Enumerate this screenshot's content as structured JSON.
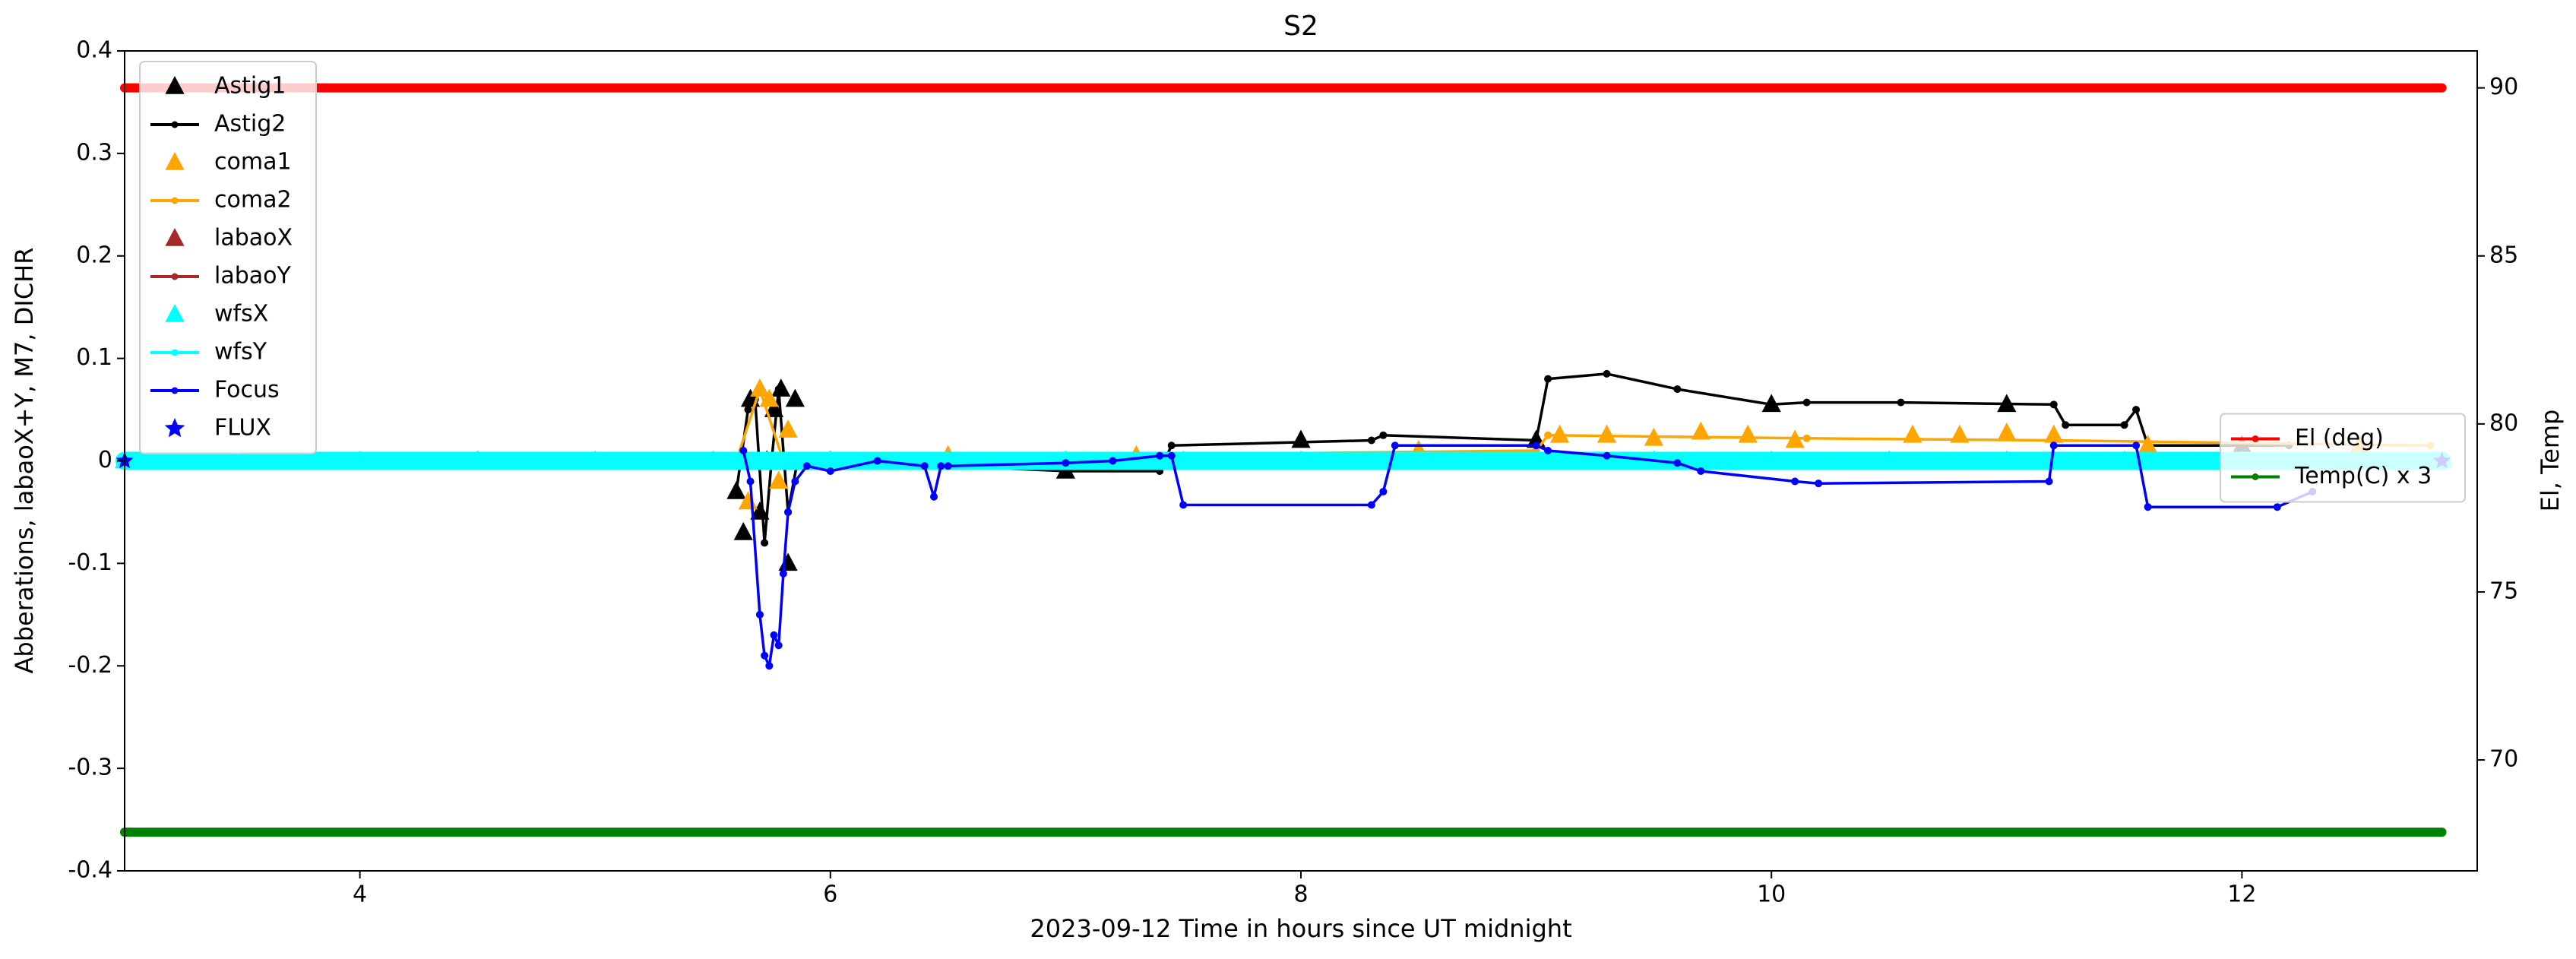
{
  "chart_data": {
    "type": "line",
    "title": "S2",
    "xlabel": "2023-09-12  Time in hours since UT midnight",
    "ylabel": "Abberations, labaoX+Y, M7, DICHR",
    "y2label": "El, Temp",
    "xlim": [
      3,
      13
    ],
    "xticks": [
      4,
      6,
      8,
      10,
      12
    ],
    "ylim": [
      -0.4,
      0.4
    ],
    "yticks": [
      -0.4,
      -0.3,
      -0.2,
      -0.1,
      0.0,
      0.1,
      0.2,
      0.3,
      0.4
    ],
    "y2lim": [
      66.7,
      91.1
    ],
    "y2ticks": [
      70,
      75,
      80,
      85,
      90
    ],
    "legend_loc": "upper left",
    "legend2_loc": "center right",
    "series": [
      {
        "name": "Astig1",
        "color": "#000000",
        "marker": "triangle",
        "line": false,
        "x": [
          5.6,
          5.63,
          5.66,
          5.7,
          5.73,
          5.76,
          5.79,
          5.82,
          5.85,
          6.0,
          7.0,
          8.0,
          9.0,
          10.0,
          11.0,
          12.0
        ],
        "values": [
          -0.03,
          -0.07,
          0.06,
          -0.05,
          0.0,
          0.05,
          0.07,
          -0.1,
          0.06,
          0.0,
          -0.01,
          0.02,
          0.02,
          0.055,
          0.055,
          0.015
        ]
      },
      {
        "name": "Astig2",
        "color": "#000000",
        "marker": "dot",
        "line": true,
        "x": [
          5.6,
          5.65,
          5.68,
          5.72,
          5.75,
          5.78,
          5.82,
          5.86,
          5.9,
          6.5,
          7.0,
          7.4,
          7.45,
          8.3,
          8.35,
          9.0,
          9.05,
          9.3,
          9.6,
          10.0,
          10.15,
          10.55,
          11.2,
          11.25,
          11.5,
          11.55,
          11.6,
          12.2
        ],
        "values": [
          -0.03,
          0.05,
          0.06,
          -0.08,
          0.0,
          0.07,
          -0.05,
          0.0,
          0.0,
          -0.005,
          -0.01,
          -0.01,
          0.015,
          0.02,
          0.025,
          0.02,
          0.08,
          0.085,
          0.07,
          0.055,
          0.057,
          0.057,
          0.055,
          0.035,
          0.035,
          0.05,
          0.015,
          0.015
        ]
      },
      {
        "name": "coma1",
        "color": "#ffa500",
        "marker": "triangle",
        "line": false,
        "x": [
          5.65,
          5.7,
          5.74,
          5.78,
          5.82,
          6.5,
          7.3,
          8.5,
          9.1,
          9.3,
          9.5,
          9.7,
          9.9,
          10.1,
          10.6,
          10.8,
          11.0,
          11.2,
          11.6,
          12.5
        ],
        "values": [
          -0.04,
          0.07,
          0.06,
          -0.02,
          0.03,
          0.005,
          0.005,
          0.01,
          0.025,
          0.025,
          0.022,
          0.028,
          0.025,
          0.02,
          0.025,
          0.025,
          0.027,
          0.025,
          0.015,
          0.015
        ]
      },
      {
        "name": "coma2",
        "color": "#ffa500",
        "marker": "dot",
        "line": true,
        "x": [
          5.6,
          5.7,
          5.8,
          5.9,
          7.0,
          9.0,
          9.05,
          10.15,
          11.2,
          12.8
        ],
        "values": [
          0.0,
          0.07,
          0.0,
          0.005,
          0.005,
          0.01,
          0.025,
          0.022,
          0.02,
          0.015
        ]
      },
      {
        "name": "labaoX",
        "color": "#a52a2a",
        "marker": "triangle",
        "line": false,
        "x": [
          3,
          12.85
        ],
        "values": [
          0,
          0
        ]
      },
      {
        "name": "labaoY",
        "color": "#a52a2a",
        "marker": "dot",
        "line": true,
        "x": [
          3,
          12.85
        ],
        "values": [
          0,
          0
        ]
      },
      {
        "name": "wfsX",
        "color": "#00ffff",
        "marker": "triangle",
        "line": false,
        "x": [
          3,
          3.5,
          4,
          4.5,
          5,
          5.5,
          6,
          6.5,
          7,
          7.5,
          8,
          8.5,
          9,
          9.5,
          10,
          10.5,
          11,
          11.5,
          12,
          12.5,
          12.85
        ],
        "values": [
          0,
          0,
          0,
          0,
          0,
          0,
          0,
          0,
          0,
          0,
          0,
          0,
          0,
          0,
          0,
          0,
          0,
          0,
          0,
          0,
          0
        ]
      },
      {
        "name": "wfsY",
        "color": "#00ffff",
        "marker": "dot",
        "line": true,
        "width": 24,
        "x": [
          3,
          12.85
        ],
        "values": [
          0,
          0
        ]
      },
      {
        "name": "Focus",
        "color": "#0000ff",
        "marker": "dot",
        "line": true,
        "x": [
          5.63,
          5.66,
          5.7,
          5.72,
          5.74,
          5.76,
          5.78,
          5.8,
          5.82,
          5.85,
          5.9,
          6.0,
          6.2,
          6.4,
          6.44,
          6.47,
          6.5,
          7.0,
          7.2,
          7.4,
          7.45,
          7.5,
          8.3,
          8.35,
          8.4,
          9.0,
          9.05,
          9.3,
          9.6,
          9.7,
          10.1,
          10.2,
          11.18,
          11.2,
          11.55,
          11.6,
          12.15,
          12.3
        ],
        "values": [
          0.01,
          -0.02,
          -0.15,
          -0.19,
          -0.2,
          -0.17,
          -0.18,
          -0.11,
          -0.05,
          -0.02,
          -0.005,
          -0.01,
          0.0,
          -0.005,
          -0.035,
          -0.005,
          -0.005,
          -0.002,
          0.0,
          0.005,
          0.005,
          -0.043,
          -0.043,
          -0.03,
          0.015,
          0.015,
          0.01,
          0.005,
          -0.002,
          -0.01,
          -0.02,
          -0.022,
          -0.02,
          0.015,
          0.015,
          -0.045,
          -0.045,
          -0.03
        ]
      },
      {
        "name": "FLUX",
        "color": "#0000ff",
        "marker": "star",
        "line": false,
        "x": [
          3,
          12.85
        ],
        "values": [
          0,
          0
        ]
      },
      {
        "name": "El (deg)",
        "color": "#ff0000",
        "marker": "dot",
        "line": true,
        "width": 12,
        "axis": "y2",
        "x": [
          3,
          12.85
        ],
        "values": [
          90,
          90
        ]
      },
      {
        "name": "Temp(C) x 3",
        "color": "#008000",
        "marker": "dot",
        "line": true,
        "width": 12,
        "axis": "y2",
        "x": [
          3,
          12.85
        ],
        "values": [
          67.85,
          67.85
        ]
      }
    ]
  }
}
